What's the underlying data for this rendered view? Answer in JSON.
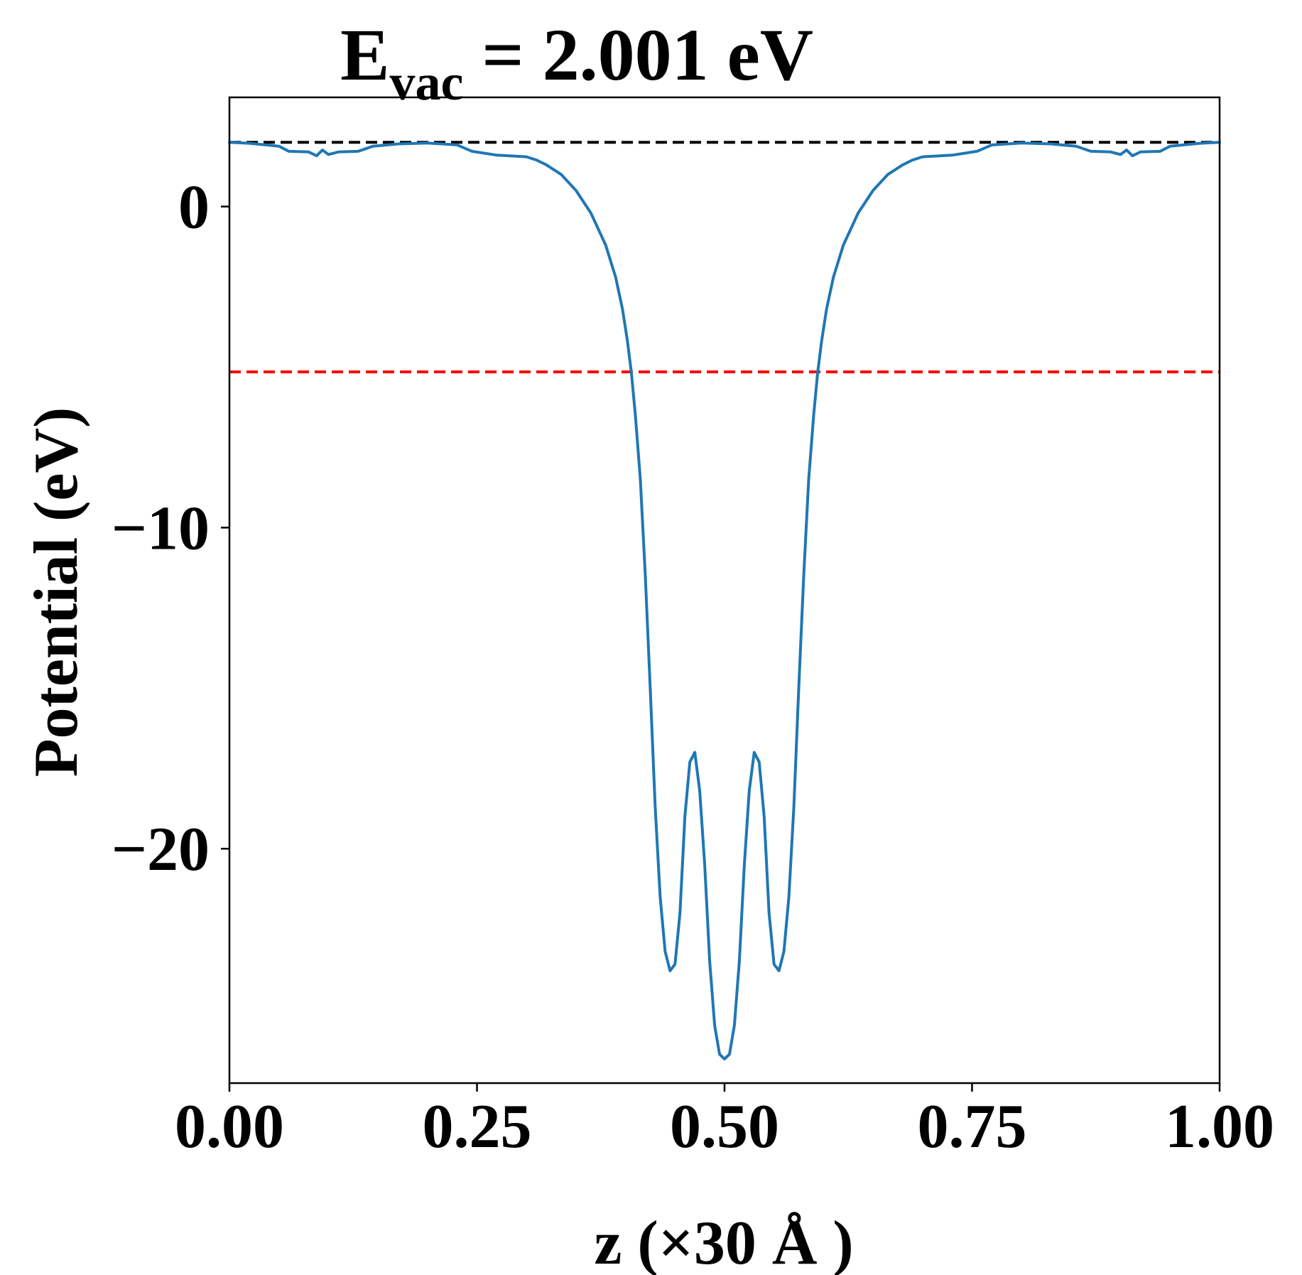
{
  "chart_data": {
    "type": "line",
    "title": {
      "main": "E",
      "subscript": "vac",
      "rest": " = 2.001 eV"
    },
    "xlabel": "z (×30 Å )",
    "ylabel": "Potential (eV)",
    "xlim": [
      0,
      1
    ],
    "ylim": [
      -27.3,
      3.4
    ],
    "x_ticks": [
      {
        "value": 0.0,
        "label": "0.00"
      },
      {
        "value": 0.25,
        "label": "0.25"
      },
      {
        "value": 0.5,
        "label": "0.50"
      },
      {
        "value": 0.75,
        "label": "0.75"
      },
      {
        "value": 1.0,
        "label": "1.00"
      }
    ],
    "y_ticks": [
      {
        "value": 0,
        "label": "0"
      },
      {
        "value": -10,
        "label": "−10"
      },
      {
        "value": -20,
        "label": "−20"
      }
    ],
    "grid": false,
    "colors": {
      "series": "#1f77b4",
      "vacuum_line": "#000000",
      "reference_line": "#ff0000"
    },
    "reference_lines": [
      {
        "y": 2.001,
        "color": "#000000",
        "style": "dashed"
      },
      {
        "y": -5.15,
        "color": "#ff0000",
        "style": "dashed"
      }
    ],
    "series": [
      {
        "points": [
          [
            0.0,
            2.0
          ],
          [
            0.02,
            1.97
          ],
          [
            0.05,
            1.88
          ],
          [
            0.06,
            1.72
          ],
          [
            0.08,
            1.7
          ],
          [
            0.088,
            1.58
          ],
          [
            0.094,
            1.76
          ],
          [
            0.1,
            1.62
          ],
          [
            0.11,
            1.7
          ],
          [
            0.13,
            1.72
          ],
          [
            0.145,
            1.88
          ],
          [
            0.17,
            1.95
          ],
          [
            0.2,
            1.98
          ],
          [
            0.23,
            1.92
          ],
          [
            0.245,
            1.72
          ],
          [
            0.27,
            1.6
          ],
          [
            0.3,
            1.55
          ],
          [
            0.31,
            1.45
          ],
          [
            0.32,
            1.3
          ],
          [
            0.335,
            1.0
          ],
          [
            0.35,
            0.5
          ],
          [
            0.365,
            -0.2
          ],
          [
            0.38,
            -1.2
          ],
          [
            0.39,
            -2.2
          ],
          [
            0.397,
            -3.2
          ],
          [
            0.402,
            -4.2
          ],
          [
            0.406,
            -5.2
          ],
          [
            0.41,
            -6.5
          ],
          [
            0.415,
            -8.5
          ],
          [
            0.42,
            -11.5
          ],
          [
            0.425,
            -15.0
          ],
          [
            0.43,
            -18.7
          ],
          [
            0.435,
            -21.5
          ],
          [
            0.44,
            -23.2
          ],
          [
            0.445,
            -23.8
          ],
          [
            0.45,
            -23.6
          ],
          [
            0.455,
            -22.0
          ],
          [
            0.46,
            -19.0
          ],
          [
            0.465,
            -17.3
          ],
          [
            0.47,
            -17.0
          ],
          [
            0.475,
            -18.2
          ],
          [
            0.48,
            -20.5
          ],
          [
            0.485,
            -23.5
          ],
          [
            0.49,
            -25.5
          ],
          [
            0.495,
            -26.4
          ],
          [
            0.5,
            -26.55
          ],
          [
            0.505,
            -26.4
          ],
          [
            0.51,
            -25.5
          ],
          [
            0.515,
            -23.5
          ],
          [
            0.52,
            -20.5
          ],
          [
            0.525,
            -18.2
          ],
          [
            0.53,
            -17.0
          ],
          [
            0.535,
            -17.3
          ],
          [
            0.54,
            -19.0
          ],
          [
            0.545,
            -22.0
          ],
          [
            0.55,
            -23.6
          ],
          [
            0.555,
            -23.8
          ],
          [
            0.56,
            -23.2
          ],
          [
            0.565,
            -21.5
          ],
          [
            0.57,
            -18.7
          ],
          [
            0.575,
            -15.0
          ],
          [
            0.58,
            -11.5
          ],
          [
            0.585,
            -8.5
          ],
          [
            0.59,
            -6.5
          ],
          [
            0.594,
            -5.2
          ],
          [
            0.598,
            -4.2
          ],
          [
            0.603,
            -3.2
          ],
          [
            0.61,
            -2.2
          ],
          [
            0.62,
            -1.2
          ],
          [
            0.635,
            -0.2
          ],
          [
            0.65,
            0.5
          ],
          [
            0.665,
            1.0
          ],
          [
            0.68,
            1.3
          ],
          [
            0.69,
            1.45
          ],
          [
            0.7,
            1.55
          ],
          [
            0.73,
            1.6
          ],
          [
            0.755,
            1.72
          ],
          [
            0.77,
            1.92
          ],
          [
            0.8,
            1.98
          ],
          [
            0.83,
            1.95
          ],
          [
            0.855,
            1.88
          ],
          [
            0.87,
            1.72
          ],
          [
            0.89,
            1.7
          ],
          [
            0.9,
            1.62
          ],
          [
            0.906,
            1.76
          ],
          [
            0.912,
            1.58
          ],
          [
            0.92,
            1.7
          ],
          [
            0.94,
            1.72
          ],
          [
            0.95,
            1.88
          ],
          [
            0.98,
            1.97
          ],
          [
            1.0,
            2.0
          ]
        ]
      }
    ]
  }
}
